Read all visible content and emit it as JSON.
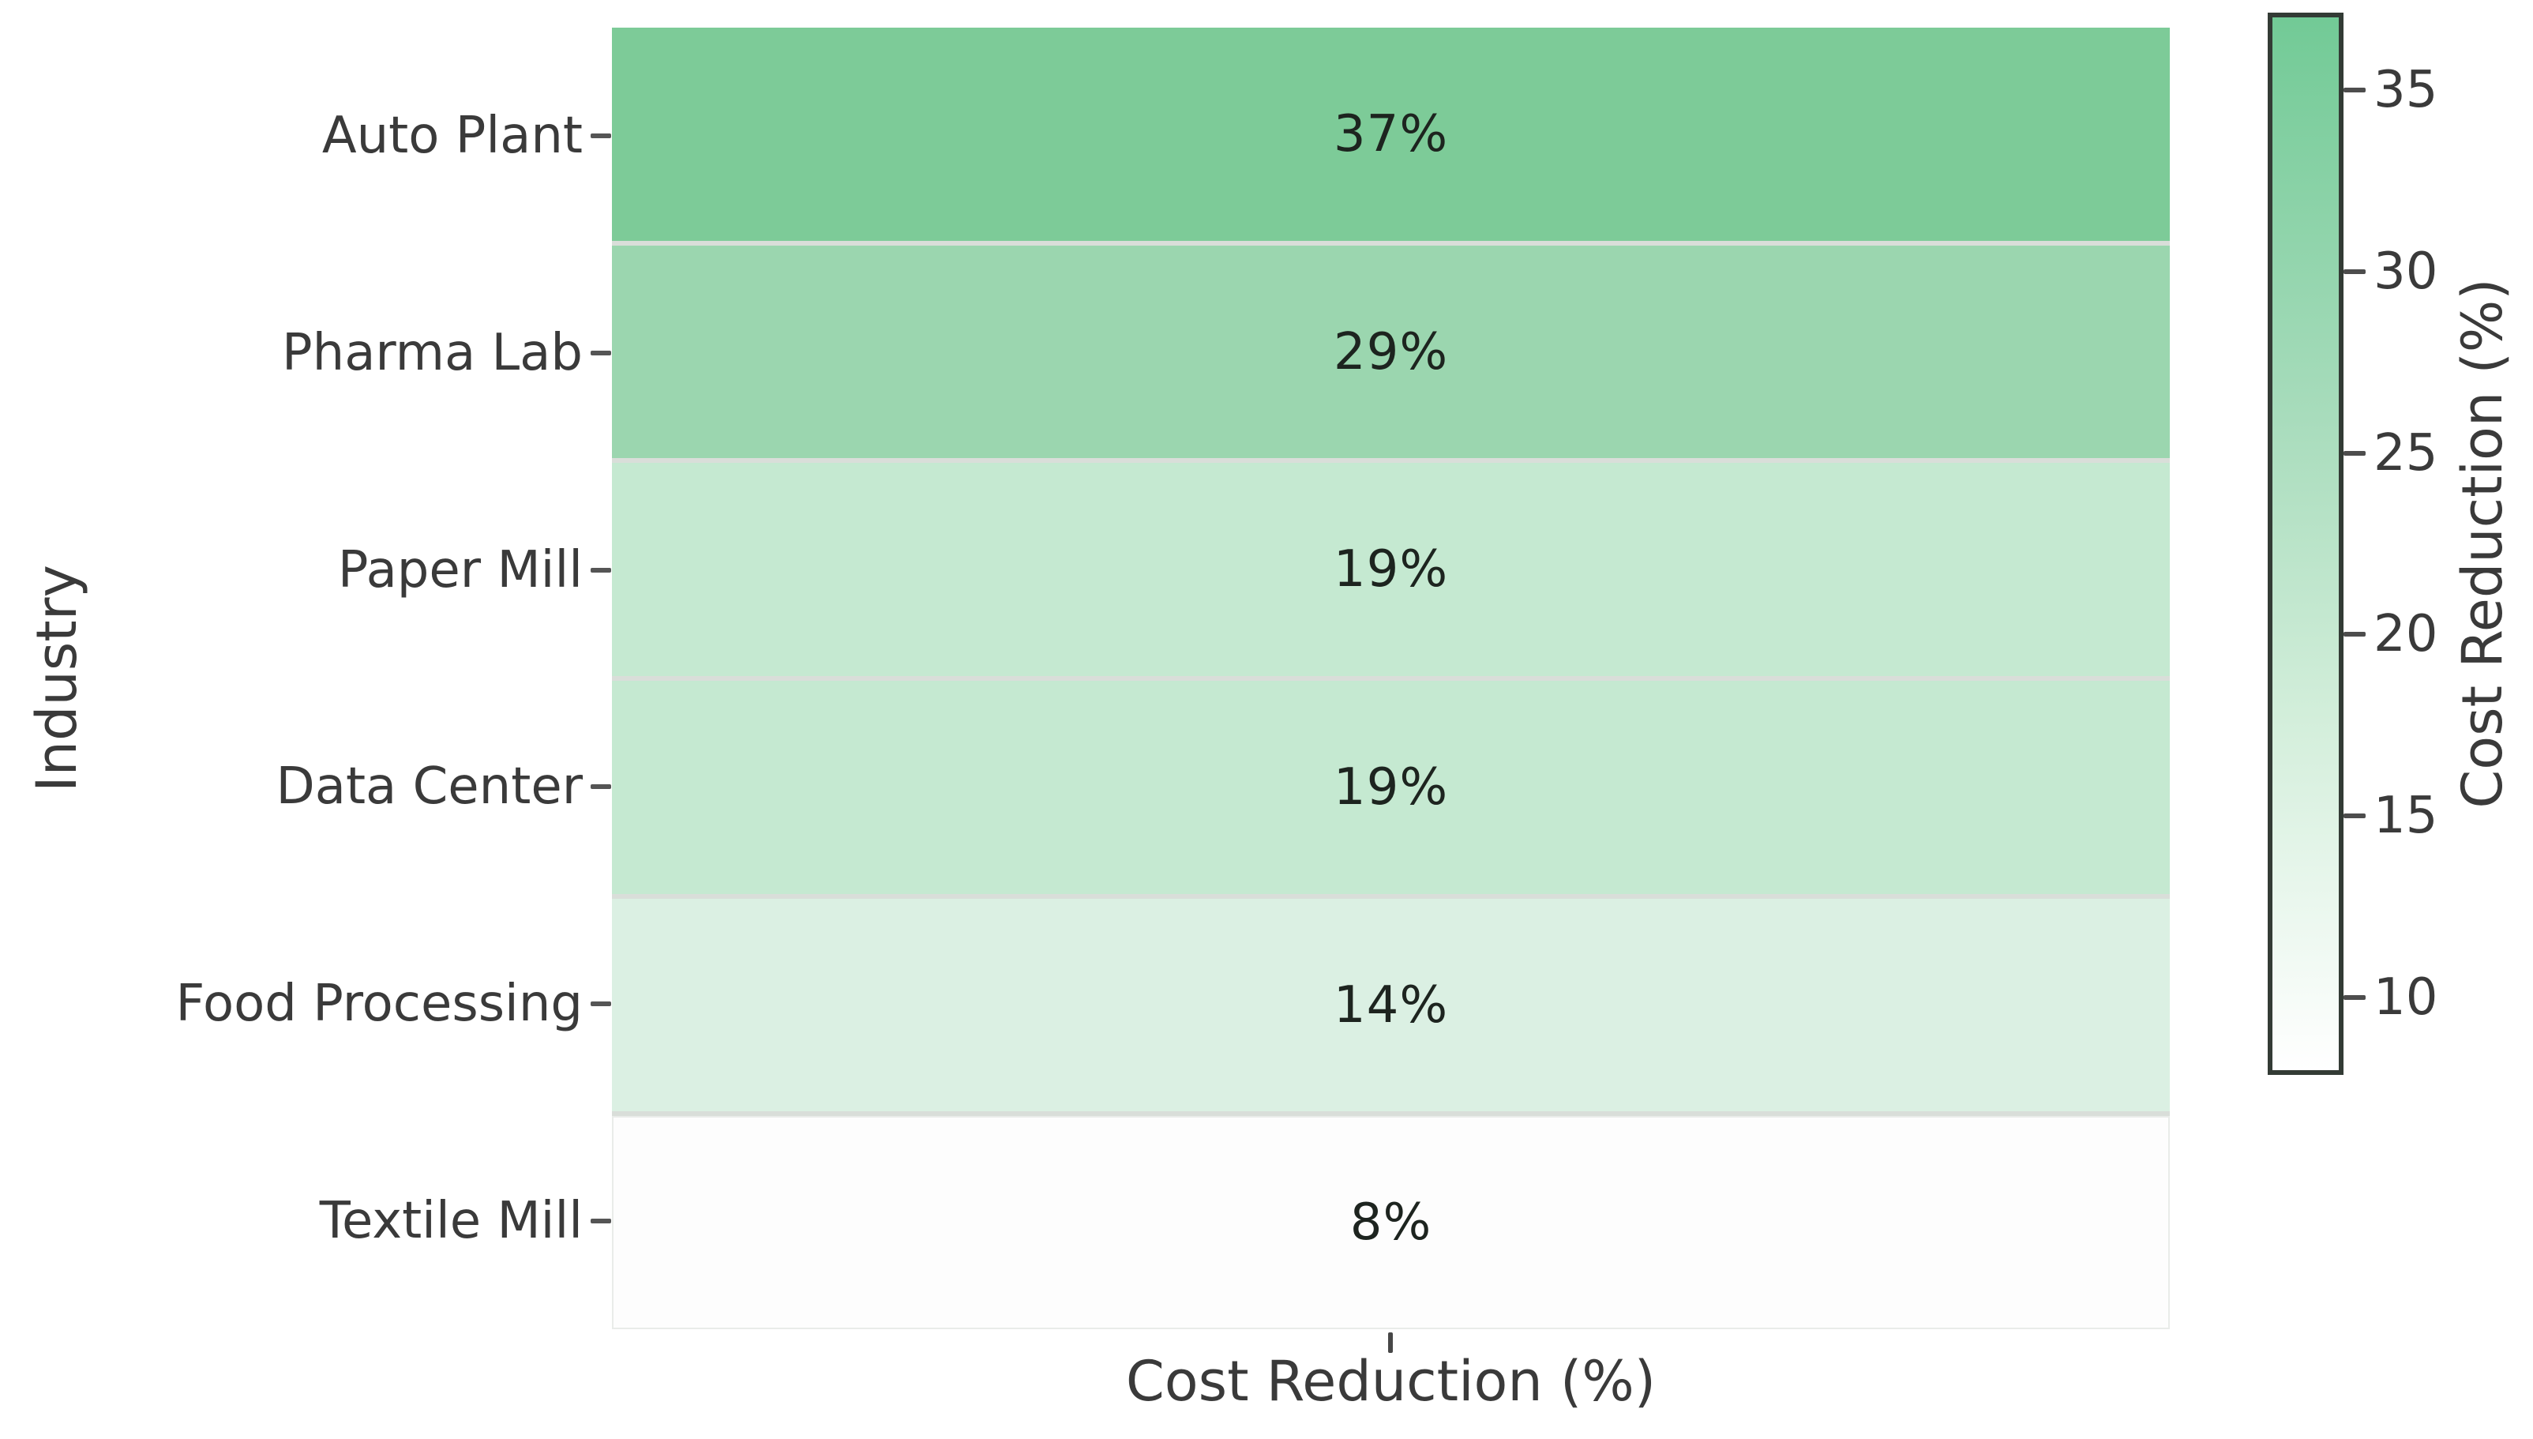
{
  "chart_data": {
    "type": "heatmap",
    "title": "",
    "xlabel": "Cost Reduction (%)",
    "ylabel": "Industry",
    "categories": [
      "Auto Plant",
      "Pharma Lab",
      "Paper Mill",
      "Data Center",
      "Food Processing",
      "Textile Mill"
    ],
    "values": [
      37,
      29,
      19,
      19,
      14,
      8
    ],
    "annotations": [
      "37%",
      "29%",
      "19%",
      "19%",
      "14%",
      "8%"
    ],
    "cell_colors": [
      "#7dcb98",
      "#9bd6af",
      "#c5e9d1",
      "#c5e9d1",
      "#dbf0e3",
      "#fdfdfd"
    ],
    "annotation_color": "#1d241f",
    "grid": false,
    "colorbar": {
      "label": "Cost Reduction (%)",
      "position": "right",
      "vmin": 8,
      "vmax": 37,
      "ticks": [
        35,
        30,
        25,
        20,
        15,
        10
      ],
      "color_min": "#ffffff",
      "color_max": "#72ca96",
      "border_color": "#333b35"
    }
  }
}
